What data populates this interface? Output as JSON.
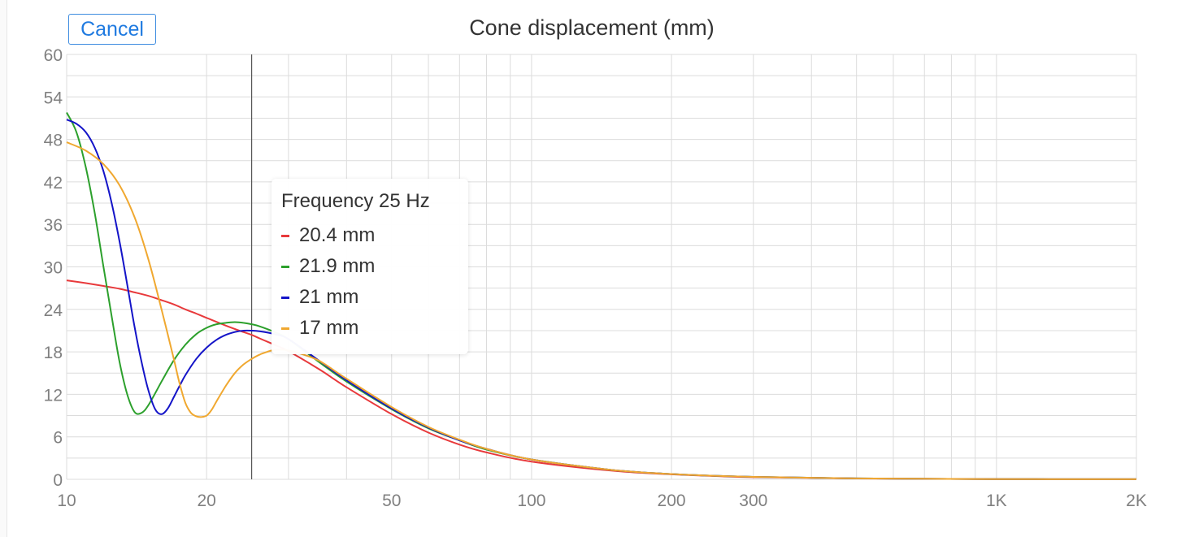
{
  "toolbar": {
    "cancel_label": "Cancel"
  },
  "chart_data": {
    "type": "line",
    "title": "Cone displacement (mm)",
    "xscale": "log",
    "xlim": [
      10,
      2000
    ],
    "ylim": [
      0,
      60
    ],
    "xticks": [
      {
        "value": 10,
        "label": "10"
      },
      {
        "value": 20,
        "label": "20"
      },
      {
        "value": 50,
        "label": "50"
      },
      {
        "value": 100,
        "label": "100"
      },
      {
        "value": 200,
        "label": "200"
      },
      {
        "value": 300,
        "label": "300"
      },
      {
        "value": 1000,
        "label": "1K"
      },
      {
        "value": 2000,
        "label": "2K"
      }
    ],
    "yticks": [
      0,
      6,
      12,
      18,
      24,
      30,
      36,
      42,
      48,
      54,
      60
    ],
    "grid": true,
    "cursor_x": 25,
    "series": [
      {
        "color": "#e8393b",
        "x": [
          10,
          11,
          12,
          13,
          14,
          15,
          16,
          17,
          18,
          19,
          20,
          22,
          24,
          25,
          26,
          28,
          30,
          35,
          40,
          50,
          60,
          70,
          80,
          100,
          150,
          200,
          300,
          500,
          1000,
          2000
        ],
        "y": [
          28.1,
          27.7,
          27.3,
          26.9,
          26.4,
          25.9,
          25.3,
          24.7,
          24.0,
          23.4,
          22.8,
          21.7,
          20.8,
          20.4,
          19.9,
          19.0,
          18.1,
          15.5,
          13.0,
          9.2,
          6.6,
          4.9,
          3.8,
          2.5,
          1.2,
          0.7,
          0.3,
          0.12,
          0.03,
          0.01
        ]
      },
      {
        "color": "#2ca02c",
        "x": [
          10,
          10.5,
          11,
          11.5,
          12,
          12.5,
          13,
          13.5,
          14,
          14.5,
          15,
          16,
          17,
          18,
          19,
          20,
          21,
          22,
          23,
          24,
          25,
          26,
          28,
          30,
          35,
          40,
          50,
          60,
          70,
          80,
          100,
          150,
          200,
          300,
          500,
          1000,
          2000
        ],
        "y": [
          51.8,
          49.0,
          44.0,
          37.5,
          30.0,
          23.0,
          16.5,
          12.0,
          9.5,
          9.4,
          10.5,
          13.8,
          16.8,
          19.0,
          20.5,
          21.4,
          21.9,
          22.1,
          22.2,
          22.1,
          21.9,
          21.6,
          20.8,
          19.8,
          16.5,
          13.8,
          9.9,
          7.2,
          5.5,
          4.2,
          2.8,
          1.3,
          0.75,
          0.34,
          0.13,
          0.03,
          0.01
        ]
      },
      {
        "color": "#1414c8",
        "x": [
          10,
          10.5,
          11,
          11.5,
          12,
          12.5,
          13,
          13.5,
          14,
          14.5,
          15,
          15.5,
          16,
          16.5,
          17,
          17.5,
          18,
          19,
          20,
          21,
          22,
          23,
          24,
          25,
          26,
          28,
          30,
          35,
          40,
          50,
          60,
          70,
          80,
          100,
          150,
          200,
          300,
          500,
          1000,
          2000
        ],
        "y": [
          50.8,
          50.2,
          49.0,
          46.8,
          43.5,
          39.0,
          33.5,
          27.5,
          21.5,
          16.5,
          12.5,
          9.9,
          9.2,
          10.0,
          11.6,
          13.2,
          14.7,
          17.0,
          18.6,
          19.7,
          20.4,
          20.8,
          21.0,
          21.0,
          20.9,
          20.5,
          19.8,
          16.7,
          14.0,
          10.0,
          7.3,
          5.5,
          4.3,
          2.8,
          1.3,
          0.75,
          0.34,
          0.13,
          0.03,
          0.01
        ]
      },
      {
        "color": "#f0a830",
        "x": [
          10,
          11,
          12,
          13,
          14,
          15,
          16,
          17,
          17.5,
          18,
          18.5,
          19,
          19.5,
          20,
          20.5,
          21,
          22,
          23,
          24,
          25,
          26,
          27,
          28,
          29,
          30,
          32,
          35,
          40,
          50,
          60,
          70,
          80,
          100,
          150,
          200,
          300,
          500,
          1000,
          2000
        ],
        "y": [
          47.6,
          46.4,
          44.5,
          41.5,
          37.0,
          31.0,
          24.0,
          17.0,
          13.5,
          10.8,
          9.4,
          8.9,
          8.8,
          9.0,
          9.8,
          11.0,
          13.2,
          15.0,
          16.2,
          17.0,
          17.6,
          18.0,
          18.3,
          18.3,
          18.2,
          17.7,
          16.7,
          14.2,
          10.2,
          7.4,
          5.6,
          4.3,
          2.8,
          1.3,
          0.75,
          0.34,
          0.13,
          0.03,
          0.01
        ]
      }
    ],
    "tooltip": {
      "title": "Frequency 25 Hz",
      "rows": [
        {
          "color": "#e8393b",
          "text": "20.4 mm"
        },
        {
          "color": "#2ca02c",
          "text": "21.9 mm"
        },
        {
          "color": "#1414c8",
          "text": "21 mm"
        },
        {
          "color": "#f0a830",
          "text": "17 mm"
        }
      ]
    }
  }
}
